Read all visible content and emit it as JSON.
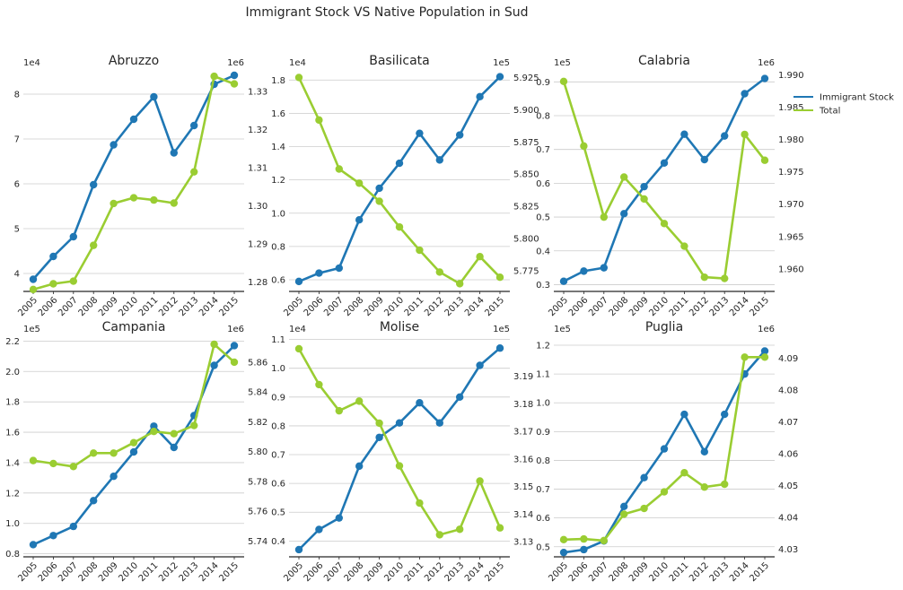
{
  "chart_data": {
    "type": "line",
    "title": "Immigrant Stock VS Native Population in Sud",
    "x": [
      2005,
      2006,
      2007,
      2008,
      2009,
      2010,
      2011,
      2012,
      2013,
      2014,
      2015
    ],
    "legend": {
      "entries": [
        {
          "name": "Immigrant Stock",
          "color": "#1f77b4"
        },
        {
          "name": "Total",
          "color": "#9acd32"
        }
      ],
      "placement": "upper right outside"
    },
    "grid": "horizontal",
    "panels": [
      {
        "title": "Abruzzo",
        "left_multiplier": "1e4",
        "right_multiplier": "1e6",
        "left_ylim": [
          3.6,
          8.5
        ],
        "left_ticks": [
          4,
          5,
          6,
          7,
          8
        ],
        "left_tick_labels": [
          "4",
          "5",
          "6",
          "7",
          "8"
        ],
        "right_ylim": [
          1.2775,
          1.3352
        ],
        "right_ticks": [
          1.28,
          1.29,
          1.3,
          1.31,
          1.32,
          1.33
        ],
        "right_tick_labels": [
          "1.28",
          "1.29",
          "1.30",
          "1.31",
          "1.32",
          "1.33"
        ],
        "series": [
          {
            "name": "Immigrant Stock",
            "axis": "left",
            "values": [
              3.87,
              4.38,
              4.82,
              5.98,
              6.87,
              7.44,
              7.94,
              6.69,
              7.3,
              8.22,
              8.42
            ]
          },
          {
            "name": "Total",
            "axis": "right",
            "values": [
              1.278,
              1.2795,
              1.2802,
              1.2896,
              1.3006,
              1.3021,
              1.3015,
              1.3007,
              1.3089,
              1.334,
              1.332
            ]
          }
        ]
      },
      {
        "title": "Basilicata",
        "left_multiplier": "1e4",
        "right_multiplier": "1e5",
        "left_ylim": [
          0.53,
          1.85
        ],
        "left_ticks": [
          0.6,
          0.8,
          1.0,
          1.2,
          1.4,
          1.6,
          1.8
        ],
        "left_tick_labels": [
          "0.6",
          "0.8",
          "1.0",
          "1.2",
          "1.4",
          "1.6",
          "1.8"
        ],
        "right_ylim": [
          5.759,
          5.9295
        ],
        "right_ticks": [
          5.775,
          5.8,
          5.825,
          5.85,
          5.875,
          5.9,
          5.925
        ],
        "right_tick_labels": [
          "5.775",
          "5.800",
          "5.825",
          "5.850",
          "5.875",
          "5.900",
          "5.925"
        ],
        "series": [
          {
            "name": "Immigrant Stock",
            "axis": "left",
            "values": [
              0.59,
              0.64,
              0.67,
              0.96,
              1.15,
              1.3,
              1.48,
              1.32,
              1.47,
              1.7,
              1.82
            ]
          },
          {
            "name": "Total",
            "axis": "right",
            "values": [
              5.925,
              5.892,
              5.854,
              5.843,
              5.829,
              5.809,
              5.791,
              5.774,
              5.765,
              5.786,
              5.77
            ]
          }
        ]
      },
      {
        "title": "Calabria",
        "left_multiplier": "1e5",
        "right_multiplier": "1e6",
        "left_ylim": [
          0.28,
          0.93
        ],
        "left_ticks": [
          0.3,
          0.4,
          0.5,
          0.6,
          0.7,
          0.8,
          0.9
        ],
        "left_tick_labels": [
          "0.3",
          "0.4",
          "0.5",
          "0.6",
          "0.7",
          "0.8",
          "0.9"
        ],
        "right_ylim": [
          1.9565,
          1.9905
        ],
        "right_ticks": [
          1.96,
          1.965,
          1.97,
          1.975,
          1.98,
          1.985,
          1.99
        ],
        "right_tick_labels": [
          "1.960",
          "1.965",
          "1.970",
          "1.975",
          "1.980",
          "1.985",
          "1.990"
        ],
        "series": [
          {
            "name": "Immigrant Stock",
            "axis": "left",
            "values": [
              0.31,
              0.34,
              0.35,
              0.51,
              0.59,
              0.66,
              0.745,
              0.67,
              0.74,
              0.865,
              0.91
            ]
          },
          {
            "name": "Total",
            "axis": "right",
            "values": [
              1.989,
              1.979,
              1.968,
              1.9742,
              1.9708,
              1.967,
              1.9635,
              1.9587,
              1.9585,
              1.9808,
              1.9768
            ]
          }
        ]
      },
      {
        "title": "Campania",
        "left_multiplier": "1e5",
        "right_multiplier": "1e6",
        "left_ylim": [
          0.78,
          2.22
        ],
        "left_ticks": [
          0.8,
          1.0,
          1.2,
          1.4,
          1.6,
          1.8,
          2.0,
          2.2
        ],
        "left_tick_labels": [
          "0.8",
          "1.0",
          "1.2",
          "1.4",
          "1.6",
          "1.8",
          "2.0",
          "2.2"
        ],
        "right_ylim": [
          5.7294,
          5.8762
        ],
        "right_ticks": [
          5.74,
          5.76,
          5.78,
          5.8,
          5.82,
          5.84,
          5.86
        ],
        "right_tick_labels": [
          "5.74",
          "5.76",
          "5.78",
          "5.80",
          "5.82",
          "5.84",
          "5.86"
        ],
        "series": [
          {
            "name": "Immigrant Stock",
            "axis": "left",
            "values": [
              0.86,
              0.92,
              0.98,
              1.15,
              1.31,
              1.47,
              1.64,
              1.5,
              1.71,
              2.04,
              2.17
            ]
          },
          {
            "name": "Total",
            "axis": "right",
            "values": [
              5.794,
              5.792,
              5.79,
              5.799,
              5.799,
              5.806,
              5.8135,
              5.812,
              5.8175,
              5.872,
              5.86
            ]
          }
        ]
      },
      {
        "title": "Molise",
        "left_multiplier": "1e4",
        "right_multiplier": "1e5",
        "left_ylim": [
          0.345,
          1.105
        ],
        "left_ticks": [
          0.4,
          0.5,
          0.6,
          0.7,
          0.8,
          0.9,
          1.0,
          1.1
        ],
        "left_tick_labels": [
          "0.4",
          "0.5",
          "0.6",
          "0.7",
          "0.8",
          "0.9",
          "1.0",
          "1.1"
        ],
        "right_ylim": [
          3.1245,
          3.2039
        ],
        "right_ticks": [
          3.13,
          3.14,
          3.15,
          3.16,
          3.17,
          3.18,
          3.19
        ],
        "right_tick_labels": [
          "3.13",
          "3.14",
          "3.15",
          "3.16",
          "3.17",
          "3.18",
          "3.19"
        ],
        "series": [
          {
            "name": "Immigrant Stock",
            "axis": "left",
            "values": [
              0.37,
              0.44,
              0.48,
              0.66,
              0.76,
              0.81,
              0.88,
              0.81,
              0.9,
              1.01,
              1.07
            ]
          },
          {
            "name": "Total",
            "axis": "right",
            "values": [
              3.2,
              3.187,
              3.1775,
              3.181,
              3.173,
              3.1575,
              3.144,
              3.1325,
              3.1345,
              3.152,
              3.135
            ]
          }
        ]
      },
      {
        "title": "Puglia",
        "left_multiplier": "1e5",
        "right_multiplier": "1e6",
        "left_ylim": [
          0.465,
          1.225
        ],
        "left_ticks": [
          0.5,
          0.6,
          0.7,
          0.8,
          0.9,
          1.0,
          1.1,
          1.2
        ],
        "left_tick_labels": [
          "0.5",
          "0.6",
          "0.7",
          "0.8",
          "0.9",
          "1.0",
          "1.1",
          "1.2"
        ],
        "right_ylim": [
          4.0276,
          4.0963
        ],
        "right_ticks": [
          4.03,
          4.04,
          4.05,
          4.06,
          4.07,
          4.08,
          4.09
        ],
        "right_tick_labels": [
          "4.03",
          "4.04",
          "4.05",
          "4.06",
          "4.07",
          "4.08",
          "4.09"
        ],
        "series": [
          {
            "name": "Immigrant Stock",
            "axis": "left",
            "values": [
              0.48,
              0.49,
              0.52,
              0.64,
              0.74,
              0.84,
              0.96,
              0.83,
              0.96,
              1.1,
              1.18
            ]
          },
          {
            "name": "Total",
            "axis": "right",
            "values": [
              4.033,
              4.0332,
              4.0327,
              4.041,
              4.0428,
              4.048,
              4.054,
              4.0495,
              4.0504,
              4.0903,
              4.0903
            ]
          }
        ]
      }
    ]
  }
}
